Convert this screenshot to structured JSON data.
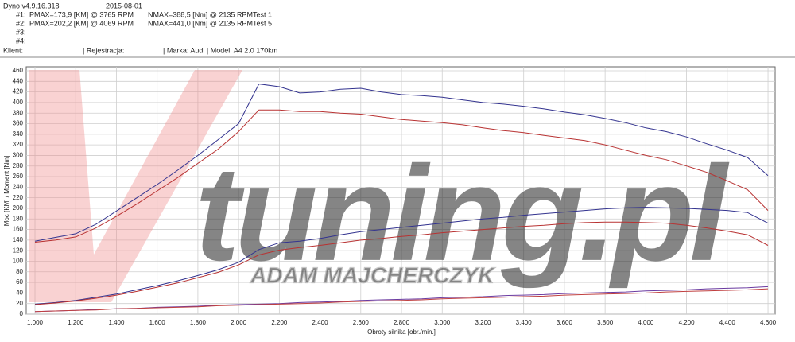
{
  "header": {
    "program": "Dyno v4.9.16.318",
    "date": "2015-08-01",
    "runs": [
      {
        "id": "#1:",
        "pmax": "PMAX=173,9 [KM] @ 3765 RPM",
        "nmax": "NMAX=388,5 [Nm] @ 2135 RPM",
        "test": "Test 1"
      },
      {
        "id": "#2:",
        "pmax": "PMAX=202,2 [KM] @ 4069 RPM",
        "nmax": "NMAX=441,0 [Nm] @ 2135 RPM",
        "test": "Test 5"
      },
      {
        "id": "#3:"
      },
      {
        "id": "#4:"
      }
    ],
    "client": "Klient:",
    "registration": "| Rejestracja:",
    "car": "| Marka: Audi | Model: A4 2.0 170km"
  },
  "chart_data": {
    "type": "line",
    "x_label": "Obroty silnika [obr./min.]",
    "y_label": "Moc [KM] / Moment [Nm]",
    "watermark": {
      "logo": "tuning.pl",
      "author": "ADAM MAJCHERCZYK"
    },
    "x": [
      1000,
      1100,
      1200,
      1300,
      1400,
      1500,
      1600,
      1700,
      1800,
      1900,
      2000,
      2100,
      2200,
      2300,
      2400,
      2500,
      2600,
      2700,
      2800,
      2900,
      3000,
      3100,
      3200,
      3300,
      3400,
      3500,
      3600,
      3700,
      3800,
      3900,
      4000,
      4100,
      4200,
      4300,
      4400,
      4500,
      4600
    ],
    "series": [
      {
        "color": "#33338f",
        "values": [
          138,
          145,
          152,
          170,
          195,
          220,
          245,
          272,
          300,
          330,
          360,
          435,
          430,
          418,
          420,
          425,
          427,
          420,
          415,
          413,
          410,
          405,
          400,
          397,
          393,
          388,
          382,
          377,
          370,
          362,
          352,
          345,
          335,
          322,
          310,
          296,
          262
        ]
      },
      {
        "color": "#b83232",
        "values": [
          136,
          140,
          146,
          163,
          185,
          208,
          233,
          258,
          285,
          312,
          345,
          386,
          386,
          383,
          383,
          380,
          378,
          373,
          368,
          365,
          362,
          358,
          352,
          347,
          343,
          338,
          333,
          328,
          320,
          310,
          300,
          292,
          280,
          268,
          252,
          235,
          196
        ]
      },
      {
        "color": "#33338f",
        "values": [
          19,
          22,
          26,
          32,
          38,
          46,
          54,
          63,
          73,
          84,
          98,
          122,
          135,
          138,
          143,
          150,
          156,
          160,
          164,
          168,
          172,
          176,
          180,
          183,
          187,
          190,
          193,
          196,
          199,
          201,
          202,
          201,
          200,
          198,
          196,
          192,
          172
        ]
      },
      {
        "color": "#b83232",
        "values": [
          18,
          21,
          25,
          30,
          36,
          43,
          51,
          59,
          69,
          79,
          93,
          112,
          121,
          126,
          130,
          135,
          140,
          143,
          147,
          150,
          154,
          157,
          160,
          163,
          166,
          168,
          171,
          173,
          174,
          174,
          173,
          172,
          168,
          163,
          157,
          150,
          130
        ]
      },
      {
        "color": "#6a3aa0",
        "values": [
          5,
          6,
          7,
          9,
          10,
          11,
          13,
          14,
          15,
          17,
          18,
          19,
          20,
          22,
          23,
          24,
          26,
          27,
          28,
          29,
          31,
          32,
          33,
          35,
          36,
          37,
          39,
          40,
          41,
          42,
          44,
          45,
          46,
          48,
          49,
          50,
          52
        ]
      },
      {
        "color": "#c04040",
        "values": [
          5,
          6,
          7,
          8,
          10,
          11,
          12,
          13,
          14,
          16,
          17,
          18,
          19,
          20,
          21,
          23,
          24,
          25,
          26,
          27,
          29,
          30,
          31,
          32,
          33,
          34,
          36,
          37,
          38,
          39,
          40,
          42,
          43,
          44,
          45,
          46,
          48
        ]
      }
    ],
    "xlim": [
      957,
      4635
    ],
    "ylim": [
      0,
      460
    ],
    "xticks": [
      {
        "value": 1000,
        "label": "1.000"
      },
      {
        "value": 1200,
        "label": "1.200"
      },
      {
        "value": 1400,
        "label": "1.400"
      },
      {
        "value": 1600,
        "label": "1.600"
      },
      {
        "value": 1800,
        "label": "1.800"
      },
      {
        "value": 2000,
        "label": "2.000"
      },
      {
        "value": 2200,
        "label": "2.200"
      },
      {
        "value": 2400,
        "label": "2.400"
      },
      {
        "value": 2600,
        "label": "2.600"
      },
      {
        "value": 2800,
        "label": "2.800"
      },
      {
        "value": 3000,
        "label": "3.000"
      },
      {
        "value": 3200,
        "label": "3.200"
      },
      {
        "value": 3400,
        "label": "3.400"
      },
      {
        "value": 3600,
        "label": "3.600"
      },
      {
        "value": 3800,
        "label": "3.800"
      },
      {
        "value": 4000,
        "label": "4.000"
      },
      {
        "value": 4200,
        "label": "4.200"
      },
      {
        "value": 4400,
        "label": "4.400"
      },
      {
        "value": 4600,
        "label": "4.600"
      }
    ],
    "yticks": [
      0,
      20,
      40,
      60,
      80,
      100,
      120,
      140,
      160,
      180,
      200,
      220,
      240,
      260,
      280,
      300,
      320,
      340,
      360,
      380,
      400,
      420,
      440,
      460
    ],
    "grid": true
  }
}
